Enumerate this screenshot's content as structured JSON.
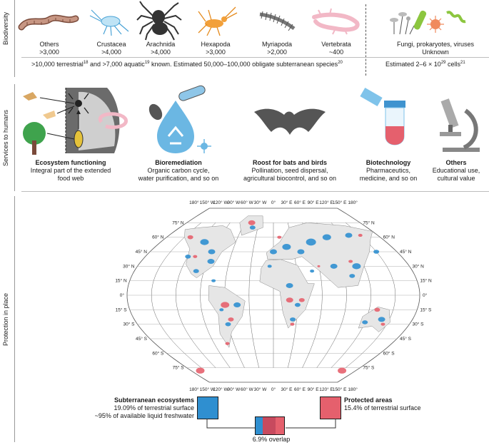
{
  "sections": {
    "biodiversity": "Biodiversity",
    "services": "Services to humans",
    "protection": "Protection in place"
  },
  "taxa": [
    {
      "name": "Others",
      "count": ">3,000",
      "icon": "worm-icon"
    },
    {
      "name": "Crustacea",
      "count": ">4,000",
      "icon": "crustacean-icon"
    },
    {
      "name": "Arachnida",
      "count": ">4,000",
      "icon": "spider-icon"
    },
    {
      "name": "Hexapoda",
      "count": ">3,000",
      "icon": "insect-icon"
    },
    {
      "name": "Myriapoda",
      "count": ">2,000",
      "icon": "millipede-icon"
    },
    {
      "name": "Vertebrata",
      "count": "~400",
      "icon": "salamander-icon"
    },
    {
      "name": "Fungi, prokaryotes, viruses",
      "count": "Unknown",
      "icon": "microbes-icon"
    }
  ],
  "species_note": {
    "part1": ">10,000 terrestrial",
    "sup1": "18",
    "part2": " and >7,000 aquatic",
    "sup2": "19",
    "part3": " known. Estimated 50,000–100,000 obligate subterranean species",
    "sup3": "20"
  },
  "cells_note": {
    "part1": "Estimated 2–6 × 10",
    "exp": "29",
    "part2": " cells",
    "sup": "21"
  },
  "services": [
    {
      "title": "Ecosystem functioning",
      "line1": "Integral part of the extended",
      "line2": "food web"
    },
    {
      "title": "Bioremediation",
      "line1": "Organic carbon cycle,",
      "line2": "water purification, and so on"
    },
    {
      "title": "Roost for bats and birds",
      "line1": "Pollination, seed dispersal,",
      "line2": "agricultural biocontrol, and so on"
    },
    {
      "title": "Biotechnology",
      "line1": "Pharmaceutics,",
      "line2": "medicine, and so on"
    },
    {
      "title": "Others",
      "line1": "Educational use,",
      "line2": "cultural value"
    }
  ],
  "map": {
    "lon_top": [
      "180°",
      "150° W",
      "120° W",
      "90° W",
      "60° W",
      "30° W",
      "0°",
      "30° E",
      "60° E",
      "90° E",
      "120° E",
      "150° E",
      "180°"
    ],
    "lon_bottom": [
      "180°",
      "150° W",
      "120° W",
      "90° W",
      "60° W",
      "30° W",
      "0°",
      "30° E",
      "60° E",
      "90° E",
      "120° E",
      "150° E",
      "180°"
    ],
    "lat_left": [
      "75° N",
      "60° N",
      "45° N",
      "30° N",
      "15° N",
      "0°",
      "15° S",
      "30° S",
      "45° S",
      "60° S",
      "75° S"
    ],
    "lat_right": [
      "75° N",
      "60° N",
      "45° N",
      "30° N",
      "15° N",
      "0°",
      "15° S",
      "30° S",
      "45° S",
      "60° S",
      "75° S"
    ],
    "colors": {
      "subterranean": "#2f8fd0",
      "protected": "#e5606d",
      "land": "#e6e6e6"
    }
  },
  "legend": {
    "subterranean_title": "Subterranean ecosystems",
    "subterranean_line1": "19.09% of terrestrial surface",
    "subterranean_line2": "~95% of available liquid freshwater",
    "protected_title": "Protected areas",
    "protected_line1": "15.4% of terrestrial surface",
    "overlap": "6.9% overlap"
  }
}
